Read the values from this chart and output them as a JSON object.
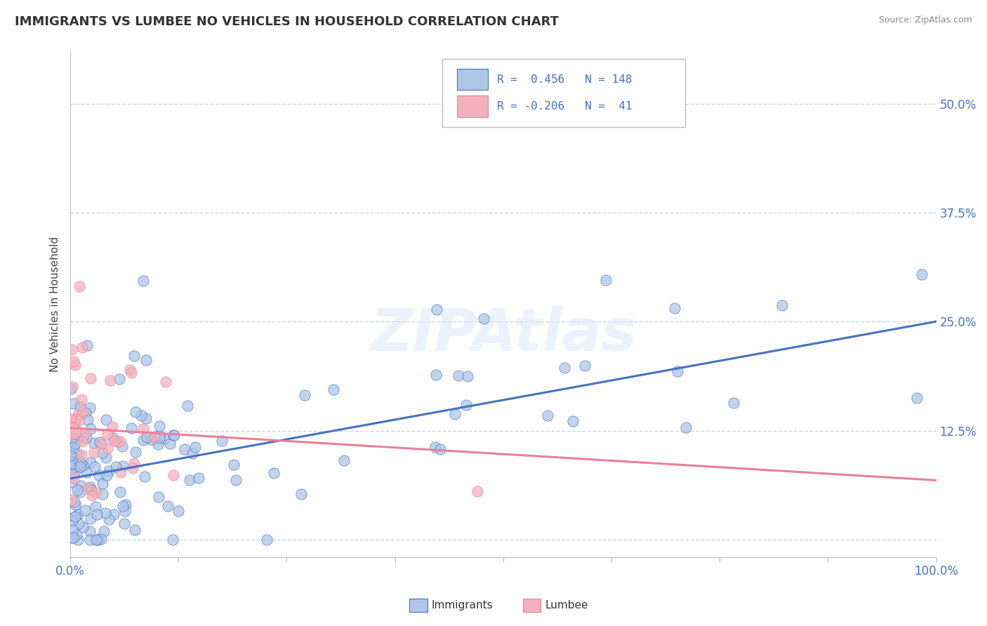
{
  "title": "IMMIGRANTS VS LUMBEE NO VEHICLES IN HOUSEHOLD CORRELATION CHART",
  "source": "Source: ZipAtlas.com",
  "ylabel": "No Vehicles in Household",
  "xlim": [
    0.0,
    1.0
  ],
  "ylim": [
    -0.02,
    0.56
  ],
  "xticks": [
    0.0,
    0.125,
    0.25,
    0.375,
    0.5,
    0.625,
    0.75,
    0.875,
    1.0
  ],
  "xticklabels": [
    "0.0%",
    "",
    "",
    "",
    "",
    "",
    "",
    "",
    "100.0%"
  ],
  "ytick_positions": [
    0.0,
    0.125,
    0.25,
    0.375,
    0.5
  ],
  "ytick_labels": [
    "",
    "12.5%",
    "25.0%",
    "37.5%",
    "50.0%"
  ],
  "immigrants_color": "#aec6e8",
  "lumbee_color": "#f4b0bc",
  "immigrants_line_color": "#4472c4",
  "lumbee_line_color": "#e8809a",
  "R_immigrants": 0.456,
  "N_immigrants": 148,
  "R_lumbee": -0.206,
  "N_lumbee": 41,
  "legend_color": "#4472c4",
  "watermark": "ZIPAtlas",
  "background_color": "#ffffff",
  "grid_color": "#c8d4e8",
  "imm_line_start_y": 0.07,
  "imm_line_end_y": 0.25,
  "lum_line_start_y": 0.128,
  "lum_line_end_y": 0.068
}
